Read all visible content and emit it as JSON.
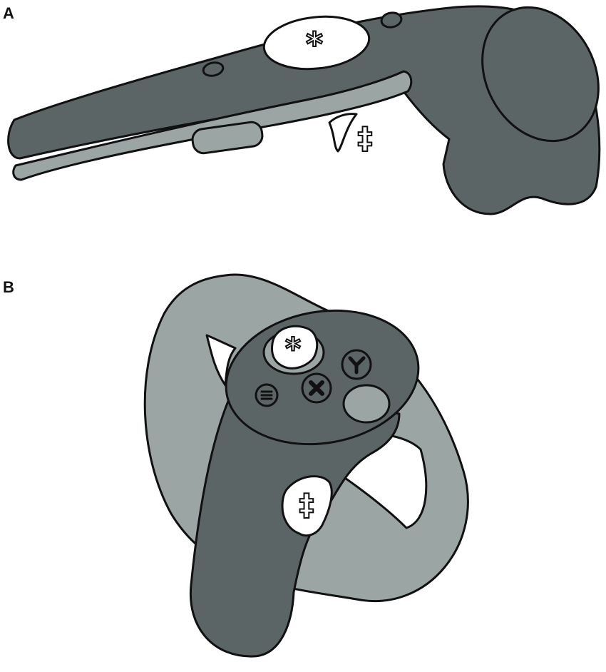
{
  "panels": [
    {
      "label": "A",
      "markers": [
        "*",
        "‡"
      ]
    },
    {
      "label": "B",
      "markers": [
        "*",
        "‡"
      ]
    }
  ],
  "colors": {
    "body_dark": "#5b6565",
    "body_light": "#9ba5a3",
    "outline": "#111111",
    "highlight": "#ffffff"
  },
  "icons": {
    "panel_a": [
      "trackpad-marker-asterisk",
      "trigger-marker-double-dagger",
      "menu-button",
      "system-button",
      "grip-button",
      "tracking-ring"
    ],
    "panel_b": [
      "thumbstick-marker-asterisk",
      "trigger-marker-double-dagger",
      "y-button",
      "x-button",
      "menu-button",
      "large-round-button",
      "tracking-ring"
    ]
  }
}
